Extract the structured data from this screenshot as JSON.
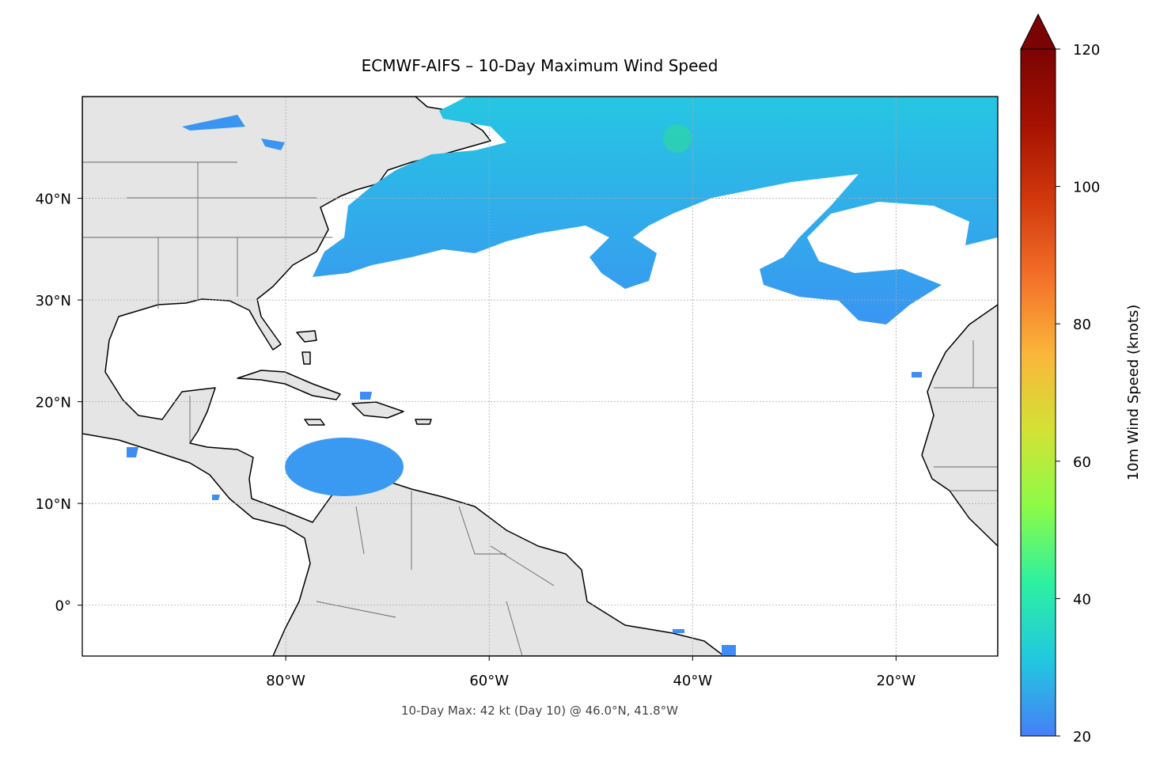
{
  "chart_data": {
    "type": "map",
    "title": "ECMWF-AIFS – 10-Day Maximum Wind Speed",
    "annotation": "10-Day Max: 42 kt (Day 10) @ 46.0°N, 41.8°W",
    "xlim": [
      -100,
      -10
    ],
    "ylim": [
      -5,
      50
    ],
    "xticks": [
      {
        "value": -80,
        "label": "80°W"
      },
      {
        "value": -60,
        "label": "60°W"
      },
      {
        "value": -40,
        "label": "40°W"
      },
      {
        "value": -20,
        "label": "20°W"
      }
    ],
    "yticks": [
      {
        "value": 0,
        "label": "0°"
      },
      {
        "value": 10,
        "label": "10°N"
      },
      {
        "value": 20,
        "label": "20°N"
      },
      {
        "value": 30,
        "label": "30°N"
      },
      {
        "value": 40,
        "label": "40°N"
      }
    ],
    "grid": true,
    "colorbar": {
      "label": "10m Wind Speed (knots)",
      "lim": [
        20,
        120
      ],
      "ticks": [
        20,
        40,
        60,
        80,
        100,
        120
      ],
      "colors": [
        "#4680f7",
        "#22c8e0",
        "#2cf0a0",
        "#8cfb48",
        "#d2e235",
        "#fbb63a",
        "#f3712a",
        "#d23a0c",
        "#a61202",
        "#7a0403"
      ],
      "extend": "max"
    }
  }
}
